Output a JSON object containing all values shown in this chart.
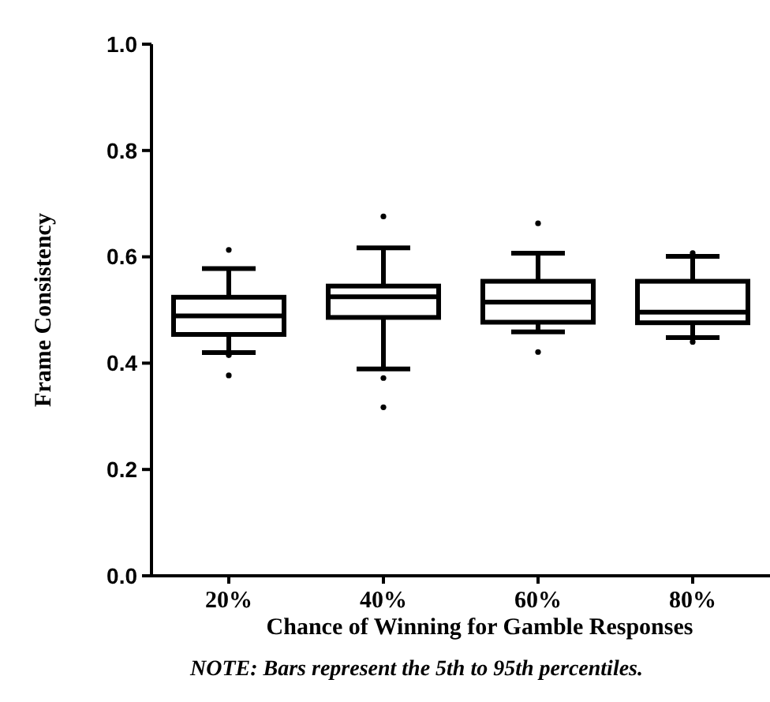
{
  "chart_data": {
    "type": "box",
    "xlabel": "Chance of Winning for Gamble Responses",
    "ylabel": "Frame Consistency",
    "annotations": [
      "NOTE: Bars represent the 5th to 95th percentiles."
    ],
    "categories": [
      "20%",
      "40%",
      "60%",
      "80%"
    ],
    "ylim": [
      0,
      1
    ],
    "yticks": [
      {
        "value": 0,
        "label": "0.0"
      },
      0.2,
      0.4,
      0.6,
      0.8,
      {
        "value": 1,
        "label": "1.0"
      }
    ],
    "grid": false,
    "boxes": [
      {
        "low": 0.42,
        "q1": 0.454,
        "median": 0.489,
        "q3": 0.524,
        "high": 0.578,
        "outliers": [
          0.613,
          0.415,
          0.377
        ]
      },
      {
        "low": 0.389,
        "q1": 0.486,
        "median": 0.525,
        "q3": 0.545,
        "high": 0.617,
        "outliers": [
          0.676,
          0.372,
          0.317
        ]
      },
      {
        "low": 0.459,
        "q1": 0.477,
        "median": 0.515,
        "q3": 0.554,
        "high": 0.607,
        "outliers": [
          0.663,
          0.421
        ]
      },
      {
        "low": 0.448,
        "q1": 0.476,
        "median": 0.496,
        "q3": 0.554,
        "high": 0.601,
        "outliers": [
          0.607,
          0.44
        ]
      }
    ]
  }
}
